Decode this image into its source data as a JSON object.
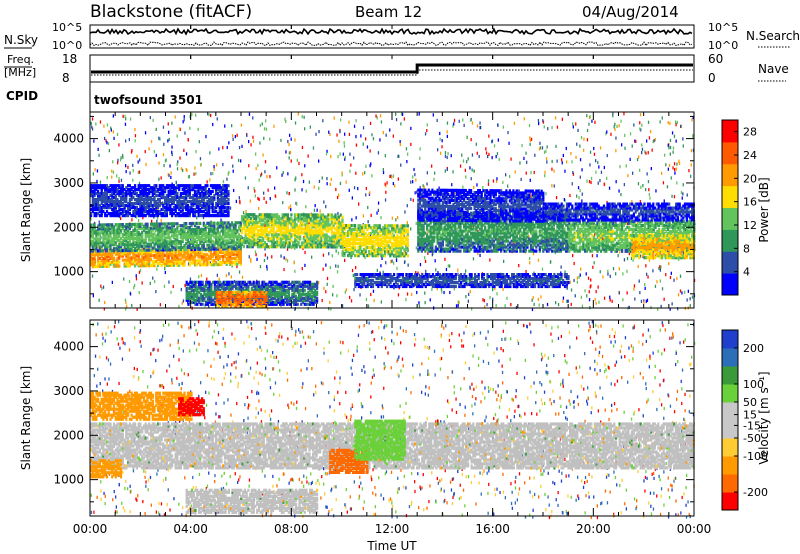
{
  "header": {
    "station": "Blackstone (fitACF)",
    "beam": "Beam 12",
    "date": "04/Aug/2014"
  },
  "panels": {
    "nsky": {
      "label": "N.Sky",
      "right_label": "N.Search",
      "tick_hi": "10^5",
      "tick_lo": "10^0"
    },
    "freq": {
      "label_top": "Freq.",
      "label_unit": "[MHz]",
      "tick_hi": "18",
      "tick_lo": "8",
      "right_label": "Nave",
      "right_tick_hi": "60",
      "right_tick_lo": "0"
    },
    "cpid": {
      "label": "CPID",
      "text": "twofsound 3501"
    }
  },
  "colors": {
    "power": [
      "#0000ff",
      "#2c4ea8",
      "#30975a",
      "#63c35c",
      "#ffdd00",
      "#ff9a00",
      "#ff5a00",
      "#ff0000"
    ],
    "velocity": [
      "#ff0000",
      "#ff6a00",
      "#ff9a00",
      "#ffcc33",
      "#c8c8c8",
      "#c8c8c8",
      "#6bd13a",
      "#3a9a3a",
      "#2c6fb8",
      "#1f3fcc"
    ],
    "ground_scatter": "#c0c0c0"
  },
  "chart_data": [
    {
      "type": "heatmap",
      "name": "power",
      "xlabel": "",
      "ylabel": "Slant Range [km]",
      "x_ticks": [
        "00:00",
        "04:00",
        "08:00",
        "12:00",
        "16:00",
        "20:00",
        "00:00"
      ],
      "y_ticks": [
        1000,
        2000,
        3000,
        4000
      ],
      "xlim": [
        0,
        24
      ],
      "ylim": [
        180,
        4600
      ],
      "colorbar": {
        "label": "Power [dB]",
        "ticks": [
          4,
          8,
          12,
          16,
          20,
          24,
          28
        ],
        "range": [
          0,
          30
        ]
      },
      "bands": [
        {
          "t0": 0.0,
          "t1": 6.0,
          "r0": 1150,
          "r1": 1550,
          "slope": 0.09,
          "level": 24
        },
        {
          "t0": 0.0,
          "t1": 6.0,
          "r0": 1500,
          "r1": 2100,
          "slope": 0.09,
          "level": 14
        },
        {
          "t0": 6.0,
          "t1": 10.0,
          "r0": 1600,
          "r1": 2350,
          "slope": -0.02,
          "level": 18
        },
        {
          "t0": 10.0,
          "t1": 12.6,
          "r0": 1400,
          "r1": 2100,
          "slope": -0.03,
          "level": 19
        },
        {
          "t0": 13.0,
          "t1": 19.0,
          "r0": 1500,
          "r1": 2400,
          "slope": 0.0,
          "level": 12
        },
        {
          "t0": 19.0,
          "t1": 24.0,
          "r0": 1500,
          "r1": 2200,
          "slope": -0.02,
          "level": 16
        },
        {
          "t0": 21.5,
          "t1": 24.0,
          "r0": 1350,
          "r1": 1850,
          "slope": 0.0,
          "level": 22
        },
        {
          "t0": 0.0,
          "t1": 5.5,
          "r0": 2300,
          "r1": 3000,
          "slope": 0.0,
          "level": 6
        },
        {
          "t0": 3.8,
          "t1": 9.0,
          "r0": 300,
          "r1": 800,
          "slope": 0.0,
          "level": 10
        },
        {
          "t0": 5.0,
          "t1": 7.0,
          "r0": 250,
          "r1": 600,
          "slope": 0.0,
          "level": 27
        },
        {
          "t0": 10.5,
          "t1": 19.0,
          "r0": 700,
          "r1": 1000,
          "slope": 0.0,
          "level": 8
        },
        {
          "t0": 13.0,
          "t1": 18.0,
          "r0": 2200,
          "r1": 2900,
          "slope": -0.05,
          "level": 6
        },
        {
          "t0": 18.0,
          "t1": 24.0,
          "r0": 2200,
          "r1": 2600,
          "slope": 0.0,
          "level": 6
        }
      ]
    },
    {
      "type": "heatmap",
      "name": "velocity",
      "xlabel": "Time UT",
      "ylabel": "Slant Range [km]",
      "x_ticks": [
        "00:00",
        "04:00",
        "08:00",
        "12:00",
        "16:00",
        "20:00",
        "00:00"
      ],
      "y_ticks": [
        1000,
        2000,
        3000,
        4000
      ],
      "xlim": [
        0,
        24
      ],
      "ylim": [
        180,
        4600
      ],
      "colorbar": {
        "label": "Velocity [m s⁻¹]",
        "ticks": [
          -200,
          -100,
          -50,
          -15,
          15,
          50,
          100,
          200
        ],
        "tick_labels": [
          "-200",
          "-100",
          "-50",
          "-15",
          "15",
          "50",
          "100",
          "200"
        ],
        "range": [
          -250,
          250
        ]
      },
      "bands": [
        {
          "t0": 0.0,
          "t1": 24.0,
          "r0": 1300,
          "r1": 2300,
          "level": 0
        },
        {
          "t0": 0.0,
          "t1": 4.0,
          "r0": 2400,
          "r1": 3000,
          "level": -60
        },
        {
          "t0": 3.5,
          "t1": 4.5,
          "r0": 2500,
          "r1": 2900,
          "level": -220
        },
        {
          "t0": 9.5,
          "t1": 11.0,
          "r0": 1200,
          "r1": 1700,
          "level": -120
        },
        {
          "t0": 10.5,
          "t1": 12.5,
          "r0": 1500,
          "r1": 2400,
          "level": 40
        },
        {
          "t0": 3.8,
          "t1": 9.0,
          "r0": 300,
          "r1": 800,
          "level": 0
        },
        {
          "t0": 0.0,
          "t1": 1.2,
          "r0": 1100,
          "r1": 1500,
          "level": -60
        }
      ]
    }
  ]
}
